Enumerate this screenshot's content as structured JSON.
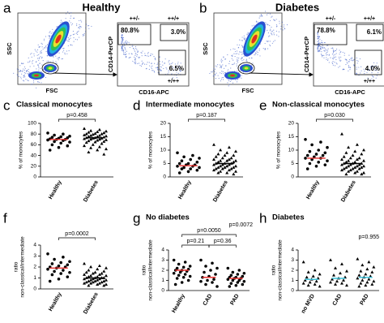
{
  "flow_panels": [
    {
      "letter": "a",
      "title": "Healthy",
      "y_label": "SSC",
      "x_label": "FSC",
      "gate_y_label": "CD14-PerCP",
      "gate_x_label": "CD16-APC",
      "gates": [
        {
          "name": "++/-",
          "percent": "80.8%"
        },
        {
          "name": "++/+",
          "percent": "3.0%"
        },
        {
          "name": "+/++",
          "percent": "6.5%"
        }
      ]
    },
    {
      "letter": "b",
      "title": "Diabetes",
      "y_label": "SSC",
      "x_label": "FSC",
      "gate_y_label": "CD14-PerCP",
      "gate_x_label": "CD16-APC",
      "gates": [
        {
          "name": "++/-",
          "percent": "78.8%"
        },
        {
          "name": "++/+",
          "percent": "6.1%"
        },
        {
          "name": "+/++",
          "percent": "4.0%"
        }
      ]
    }
  ],
  "chart_data": [
    {
      "type": "strip",
      "letter": "c",
      "title": "Classical monocytes",
      "y_label": [
        "% of monocytes"
      ],
      "categories": [
        "Healthy",
        "Diabetes"
      ],
      "ylim": [
        0,
        100
      ],
      "yticks": [
        0,
        20,
        40,
        60,
        80,
        100
      ],
      "point_color": "#000000",
      "annotations": [
        "p=0.458"
      ],
      "groups": [
        {
          "marker": "circle",
          "center_color": "#e8312f",
          "center": 70,
          "values": [
            82,
            80,
            78,
            76,
            75,
            74,
            73,
            72,
            71,
            70,
            70,
            69,
            68,
            66,
            65,
            63,
            60,
            58,
            55,
            50
          ]
        },
        {
          "marker": "triangle",
          "center_color": "#000000",
          "center": 73,
          "values": [
            90,
            88,
            86,
            85,
            84,
            83,
            82,
            81,
            80,
            80,
            79,
            78,
            77,
            77,
            76,
            75,
            75,
            74,
            73,
            73,
            72,
            72,
            71,
            70,
            70,
            69,
            68,
            67,
            66,
            65,
            64,
            62,
            60,
            58,
            56,
            54,
            52,
            50,
            46,
            42
          ]
        }
      ]
    },
    {
      "type": "strip",
      "letter": "d",
      "title": "Intermediate monocytes",
      "y_label": [
        "% of monocytes"
      ],
      "categories": [
        "Healthy",
        "Diabetes"
      ],
      "ylim": [
        0,
        20
      ],
      "yticks": [
        0,
        5,
        10,
        15,
        20
      ],
      "point_color": "#000000",
      "annotations": [
        "p=0.187"
      ],
      "groups": [
        {
          "marker": "circle",
          "center_color": "#e8312f",
          "center": 4.2,
          "values": [
            9,
            8,
            7.5,
            7,
            6.5,
            6,
            5.5,
            5,
            5,
            4.5,
            4.5,
            4,
            4,
            3.5,
            3.5,
            3,
            3,
            2.5,
            2,
            1.5
          ]
        },
        {
          "marker": "triangle",
          "center_color": "#000000",
          "center": 5,
          "values": [
            12,
            11,
            10,
            9.5,
            9,
            8.5,
            8,
            8,
            7.5,
            7,
            7,
            6.5,
            6.5,
            6,
            6,
            6,
            5.5,
            5.5,
            5,
            5,
            5,
            4.5,
            4.5,
            4.5,
            4,
            4,
            4,
            3.5,
            3.5,
            3.5,
            3,
            3,
            3,
            2.5,
            2.5,
            2,
            2,
            1.5,
            1.5,
            1
          ]
        }
      ]
    },
    {
      "type": "strip",
      "letter": "e",
      "title": "Non-classical monocytes",
      "y_label": [
        "% of monocytes"
      ],
      "categories": [
        "Healthy",
        "Diabetes"
      ],
      "ylim": [
        0,
        20
      ],
      "yticks": [
        0,
        5,
        10,
        15,
        20
      ],
      "point_color": "#000000",
      "annotations": [
        "p=0.030"
      ],
      "groups": [
        {
          "marker": "circle",
          "center_color": "#e8312f",
          "center": 7,
          "values": [
            14,
            13,
            12,
            11,
            10,
            9.5,
            9,
            8.5,
            8,
            8,
            7.5,
            7,
            7,
            6.5,
            6,
            5.5,
            5,
            4.5,
            4,
            3
          ]
        },
        {
          "marker": "triangle",
          "center_color": "#000000",
          "center": 5,
          "values": [
            16,
            12,
            11,
            10,
            9.5,
            9,
            8.5,
            8,
            7.5,
            7,
            7,
            6.5,
            6.5,
            6,
            6,
            5.5,
            5.5,
            5,
            5,
            5,
            4.5,
            4.5,
            4.5,
            4,
            4,
            4,
            3.5,
            3.5,
            3.5,
            3,
            3,
            3,
            2.5,
            2.5,
            2,
            2,
            1.5,
            1.5,
            1,
            1
          ]
        }
      ]
    },
    {
      "type": "strip",
      "letter": "f",
      "y_label": [
        "ratio",
        "non-classical/intermediate"
      ],
      "categories": [
        "Healthy",
        "Diabetes"
      ],
      "ylim": [
        0,
        4
      ],
      "yticks": [
        0,
        1,
        2,
        3,
        4
      ],
      "point_color": "#000000",
      "annotations": [
        "p=0.0002"
      ],
      "groups": [
        {
          "marker": "circle",
          "center_color": "#e8312f",
          "center": 1.9,
          "values": [
            3.2,
            2.9,
            2.7,
            2.5,
            2.4,
            2.3,
            2.2,
            2.1,
            2.0,
            2.0,
            1.9,
            1.8,
            1.7,
            1.6,
            1.5,
            1.4,
            1.3,
            1.1,
            0.9,
            0.7
          ]
        },
        {
          "marker": "triangle",
          "center_color": "#000000",
          "center": 1.0,
          "values": [
            2.3,
            2.1,
            2.0,
            1.9,
            1.8,
            1.7,
            1.6,
            1.5,
            1.5,
            1.4,
            1.4,
            1.3,
            1.3,
            1.2,
            1.2,
            1.1,
            1.1,
            1.0,
            1.0,
            1.0,
            1.0,
            0.9,
            0.9,
            0.9,
            0.8,
            0.8,
            0.8,
            0.7,
            0.7,
            0.7,
            0.6,
            0.6,
            0.6,
            0.5,
            0.5,
            0.5,
            0.4,
            0.4,
            0.3,
            0.3
          ]
        }
      ]
    },
    {
      "type": "strip",
      "letter": "g",
      "title": "No diabetes",
      "y_label": [
        "ratio",
        "non-classical/intermediate"
      ],
      "categories": [
        "Healthy",
        "CAD",
        "PAD"
      ],
      "ylim": [
        0,
        4
      ],
      "yticks": [
        0,
        1,
        2,
        3,
        4
      ],
      "point_color": "#000000",
      "annotations": [
        "p=0.21",
        "p=0.0050",
        "p=0.36",
        "p=0.0072"
      ],
      "groups": [
        {
          "marker": "circle",
          "center_color": "#e8312f",
          "center": 2.0,
          "values": [
            3.0,
            2.8,
            2.6,
            2.4,
            2.3,
            2.2,
            2.1,
            2.0,
            2.0,
            1.9,
            1.8,
            1.7,
            1.6,
            1.5,
            1.4,
            1.3,
            1.2,
            1.0,
            0.8,
            0.6
          ]
        },
        {
          "marker": "circle",
          "center_color": "#e8312f",
          "center": 1.3,
          "values": [
            3.0,
            2.7,
            2.4,
            2.2,
            2.0,
            1.8,
            1.6,
            1.4,
            1.3,
            1.1,
            1.0,
            0.9,
            0.8,
            0.6,
            0.4
          ]
        },
        {
          "marker": "circle",
          "center_color": "#e8312f",
          "center": 1.2,
          "values": [
            2.2,
            2.0,
            1.8,
            1.7,
            1.6,
            1.5,
            1.4,
            1.3,
            1.3,
            1.2,
            1.2,
            1.1,
            1.0,
            1.0,
            0.9,
            0.8,
            0.7,
            0.6,
            0.5,
            0.4
          ]
        }
      ]
    },
    {
      "type": "strip",
      "letter": "h",
      "title": "Diabetes",
      "y_label": [
        "ratio",
        "non-classical/intermediate"
      ],
      "categories": [
        "no MVD",
        "CAD",
        "PAD"
      ],
      "ylim": [
        0,
        4
      ],
      "yticks": [
        0,
        1,
        2,
        3,
        4
      ],
      "point_color": "#000000",
      "annotations": [
        "p=0.955"
      ],
      "groups": [
        {
          "marker": "triangle",
          "center_color": "#3cc0d8",
          "center": 1.1,
          "values": [
            2.8,
            2.0,
            1.8,
            1.6,
            1.4,
            1.3,
            1.2,
            1.1,
            1.0,
            0.9,
            0.8,
            0.7,
            0.6,
            0.5,
            0.4
          ]
        },
        {
          "marker": "triangle",
          "center_color": "#3cc0d8",
          "center": 1.2,
          "values": [
            3.0,
            2.6,
            2.2,
            1.9,
            1.7,
            1.5,
            1.3,
            1.2,
            1.1,
            1.0,
            0.9,
            0.8,
            0.7,
            0.6,
            0.5
          ]
        },
        {
          "marker": "triangle",
          "center_color": "#3cc0d8",
          "center": 1.3,
          "values": [
            3.1,
            2.8,
            2.5,
            2.3,
            2.1,
            1.9,
            1.8,
            1.6,
            1.5,
            1.4,
            1.3,
            1.2,
            1.1,
            1.0,
            0.9,
            0.8,
            0.7,
            0.6,
            0.5,
            0.4
          ]
        }
      ]
    }
  ]
}
